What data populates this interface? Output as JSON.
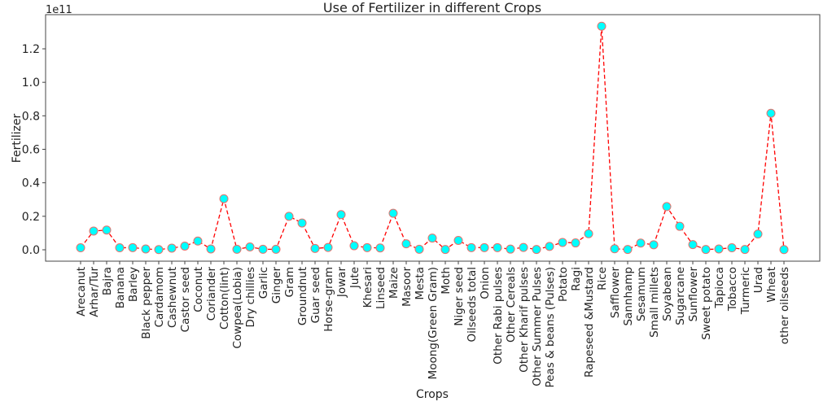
{
  "chart_data": {
    "type": "line",
    "title": "Use of Fertilizer in different Crops",
    "xlabel": "Crops",
    "ylabel": "Fertilizer",
    "y_offset_label": "1e11",
    "ylim": [
      -0.025,
      1.375
    ],
    "yticks": [
      0.0,
      0.2,
      0.4,
      0.6,
      0.8,
      1.0,
      1.2
    ],
    "ytick_labels": [
      "0.0",
      "0.2",
      "0.4",
      "0.6",
      "0.8",
      "1.0",
      "1.2"
    ],
    "grid": false,
    "line_color": "#ff0000",
    "line_style": "dashed",
    "marker_face_color": "#00ffff",
    "marker_edge_color": "#e8706b",
    "categories": [
      "Arecanut",
      "Arhar/Tur",
      "Bajra",
      "Banana",
      "Barley",
      "Black pepper",
      "Cardamom",
      "Cashewnut",
      "Castor seed",
      "Coconut ",
      "Coriander",
      "Cotton(lint)",
      "Cowpea(Lobia)",
      "Dry chillies",
      "Garlic",
      "Ginger",
      "Gram",
      "Groundnut",
      "Guar seed",
      "Horse-gram",
      "Jowar",
      "Jute",
      "Khesari",
      "Linseed",
      "Maize",
      "Masoor",
      "Mesta",
      "Moong(Green Gram)",
      "Moth",
      "Niger seed",
      "Oilseeds total",
      "Onion",
      "Other  Rabi pulses",
      "Other Cereals",
      "Other Kharif pulses",
      "Other Summer Pulses",
      "Peas & beans (Pulses)",
      "Potato",
      "Ragi",
      "Rapeseed &Mustard",
      "Rice",
      "Safflower",
      "Sannhamp",
      "Sesamum",
      "Small millets",
      "Soyabean",
      "Sugarcane",
      "Sunflower",
      "Sweet potato",
      "Tapioca",
      "Tobacco",
      "Turmeric",
      "Urad",
      "Wheat",
      "other oilseeds"
    ],
    "values": [
      0.012,
      0.112,
      0.118,
      0.012,
      0.013,
      0.005,
      0.001,
      0.01,
      0.022,
      0.052,
      0.005,
      0.305,
      0.003,
      0.017,
      0.003,
      0.003,
      0.2,
      0.16,
      0.008,
      0.014,
      0.21,
      0.024,
      0.013,
      0.011,
      0.218,
      0.036,
      0.003,
      0.07,
      0.002,
      0.056,
      0.013,
      0.013,
      0.013,
      0.004,
      0.014,
      0.002,
      0.02,
      0.044,
      0.041,
      0.096,
      1.335,
      0.006,
      0.002,
      0.04,
      0.03,
      0.258,
      0.14,
      0.031,
      0.002,
      0.005,
      0.012,
      0.002,
      0.094,
      0.815,
      0.001
    ]
  }
}
